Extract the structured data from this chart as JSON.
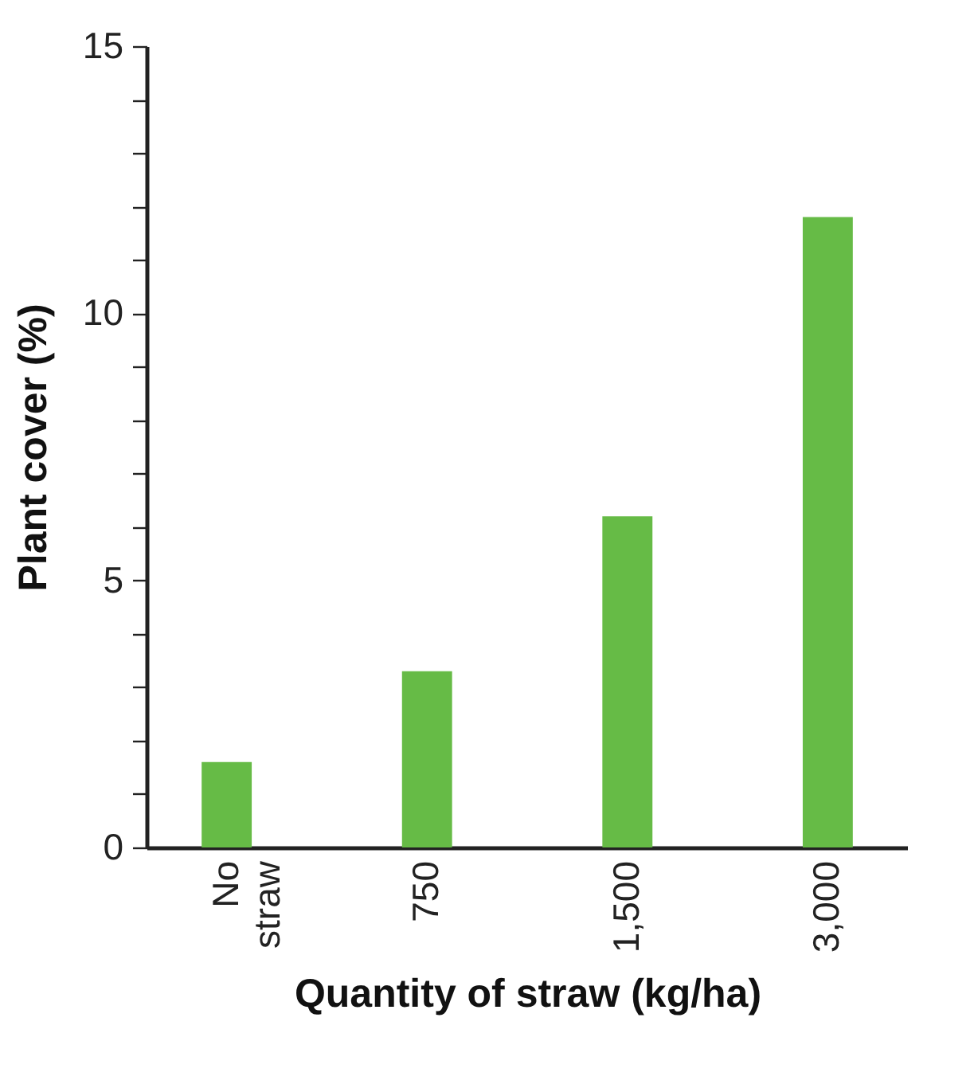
{
  "chart_data": {
    "type": "bar",
    "xlabel": "Quantity of straw (kg/ha)",
    "ylabel": "Plant cover (%)",
    "categories": [
      "No straw",
      "750",
      "1,500",
      "3,000"
    ],
    "values": [
      1.6,
      3.3,
      6.2,
      11.8
    ],
    "color": "#66bb46",
    "ylim": [
      0,
      15
    ],
    "yticks": [
      0,
      {
        "value": 1,
        "label": null
      },
      {
        "value": 2,
        "label": null
      },
      {
        "value": 3,
        "label": null
      },
      {
        "value": 4,
        "label": null
      },
      5,
      {
        "value": 6,
        "label": null
      },
      {
        "value": 7,
        "label": null
      },
      {
        "value": 8,
        "label": null
      },
      {
        "value": 9,
        "label": null
      },
      10,
      {
        "value": 11,
        "label": null
      },
      {
        "value": 12,
        "label": null
      },
      {
        "value": 13,
        "label": null
      },
      {
        "value": 14,
        "label": null
      },
      15
    ],
    "grid": false
  }
}
